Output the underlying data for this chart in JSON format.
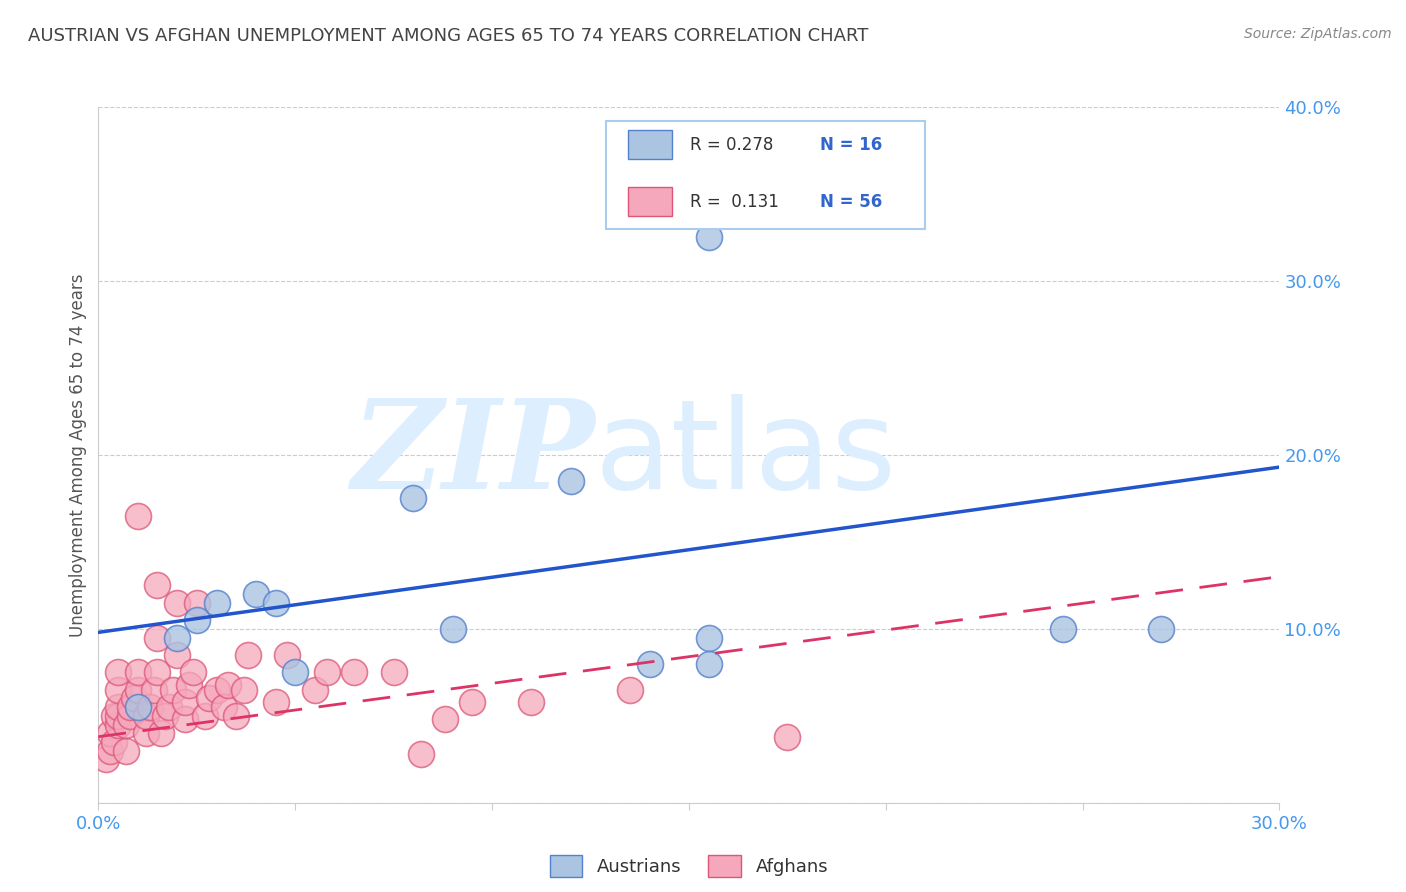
{
  "title": "AUSTRIAN VS AFGHAN UNEMPLOYMENT AMONG AGES 65 TO 74 YEARS CORRELATION CHART",
  "source": "Source: ZipAtlas.com",
  "ylabel": "Unemployment Among Ages 65 to 74 years",
  "xlim": [
    0,
    0.3
  ],
  "ylim": [
    0,
    0.4
  ],
  "xticks": [
    0.0,
    0.05,
    0.1,
    0.15,
    0.2,
    0.25,
    0.3
  ],
  "yticks": [
    0.0,
    0.1,
    0.2,
    0.3,
    0.4
  ],
  "ytick_labels": [
    "",
    "10.0%",
    "20.0%",
    "30.0%",
    "40.0%"
  ],
  "xtick_labels": [
    "0.0%",
    "",
    "",
    "",
    "",
    "",
    "30.0%"
  ],
  "austrians_x": [
    0.01,
    0.02,
    0.025,
    0.03,
    0.04,
    0.045,
    0.05,
    0.08,
    0.09,
    0.155,
    0.155,
    0.155,
    0.245,
    0.12,
    0.27,
    0.14
  ],
  "austrians_y": [
    0.055,
    0.095,
    0.105,
    0.115,
    0.12,
    0.115,
    0.075,
    0.175,
    0.1,
    0.095,
    0.08,
    0.325,
    0.1,
    0.185,
    0.1,
    0.08
  ],
  "afghans_x": [
    0.002,
    0.003,
    0.003,
    0.004,
    0.004,
    0.005,
    0.005,
    0.005,
    0.005,
    0.005,
    0.007,
    0.007,
    0.008,
    0.008,
    0.009,
    0.01,
    0.01,
    0.01,
    0.012,
    0.012,
    0.013,
    0.014,
    0.015,
    0.015,
    0.015,
    0.016,
    0.017,
    0.018,
    0.019,
    0.02,
    0.02,
    0.022,
    0.022,
    0.023,
    0.024,
    0.025,
    0.027,
    0.028,
    0.03,
    0.032,
    0.033,
    0.035,
    0.037,
    0.038,
    0.045,
    0.048,
    0.055,
    0.058,
    0.065,
    0.075,
    0.082,
    0.088,
    0.095,
    0.11,
    0.135,
    0.175
  ],
  "afghans_y": [
    0.025,
    0.03,
    0.04,
    0.035,
    0.05,
    0.045,
    0.05,
    0.055,
    0.065,
    0.075,
    0.03,
    0.045,
    0.05,
    0.055,
    0.06,
    0.065,
    0.075,
    0.165,
    0.04,
    0.05,
    0.055,
    0.065,
    0.075,
    0.095,
    0.125,
    0.04,
    0.05,
    0.055,
    0.065,
    0.085,
    0.115,
    0.048,
    0.058,
    0.068,
    0.075,
    0.115,
    0.05,
    0.06,
    0.065,
    0.055,
    0.068,
    0.05,
    0.065,
    0.085,
    0.058,
    0.085,
    0.065,
    0.075,
    0.075,
    0.075,
    0.028,
    0.048,
    0.058,
    0.058,
    0.065,
    0.038
  ],
  "blue_trend_x": [
    0.0,
    0.3
  ],
  "blue_trend_y": [
    0.098,
    0.193
  ],
  "pink_trend_x": [
    0.0,
    0.3
  ],
  "pink_trend_y": [
    0.038,
    0.13
  ],
  "R_austrians": "0.278",
  "N_austrians": "16",
  "R_afghans": "0.131",
  "N_afghans": "56",
  "dot_color_austrians": "#aac4e2",
  "dot_color_afghans": "#f5a8bc",
  "dot_edge_austrians": "#5580cc",
  "dot_edge_afghans": "#dd5577",
  "trend_color_austrians": "#2255cc",
  "trend_color_afghans": "#dd3366",
  "background_color": "#ffffff",
  "grid_color": "#cccccc",
  "title_color": "#444444",
  "axis_label_color": "#555555",
  "tick_color": "#4499ee",
  "watermark_zip": "ZIP",
  "watermark_atlas": "atlas",
  "watermark_color": "#ddeeff",
  "legend_text_color": "#333333",
  "legend_value_color": "#3366cc",
  "legend_box_color": "#aaccee"
}
